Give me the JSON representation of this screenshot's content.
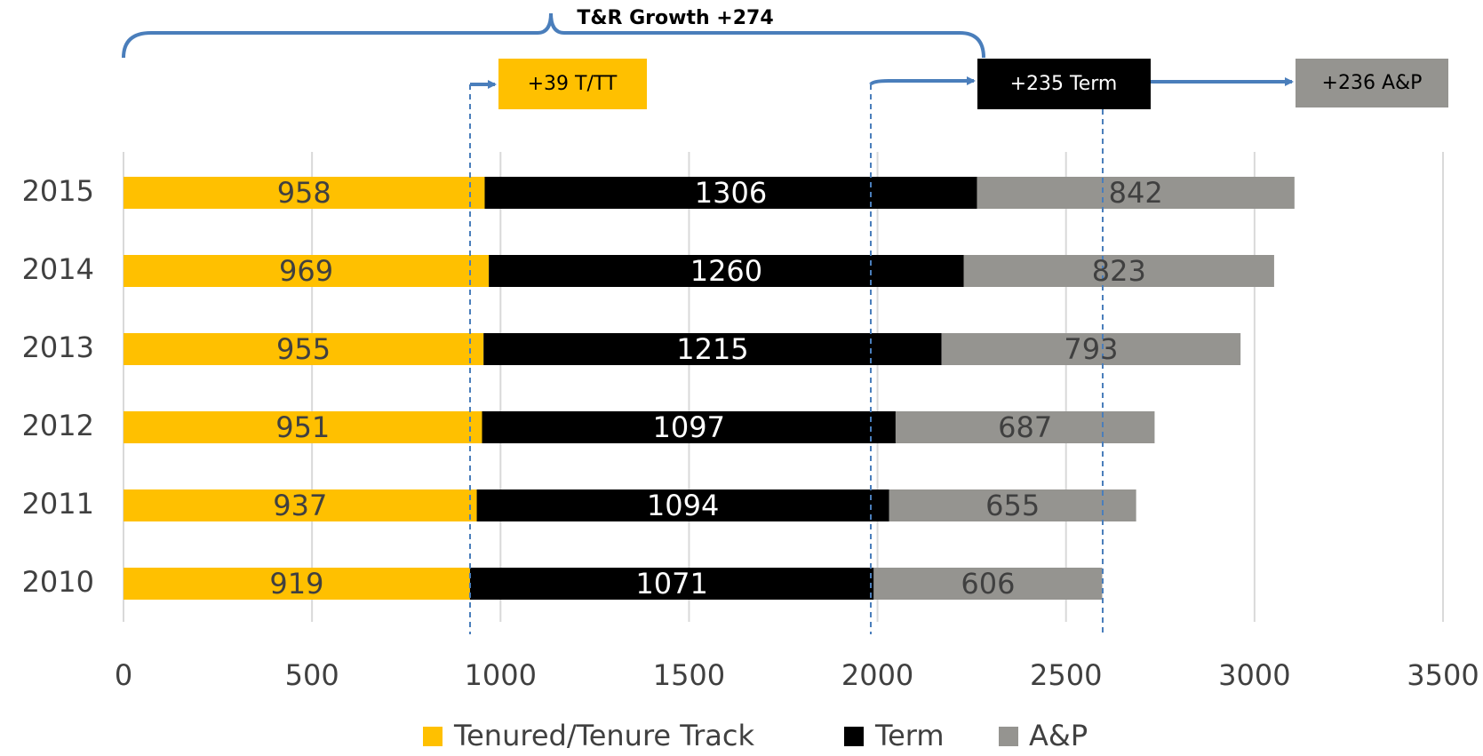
{
  "chart_data": {
    "type": "bar",
    "orientation": "horizontal",
    "stacked": true,
    "title": "T&R Growth +274",
    "annotations": [
      "+39 T/TT",
      "+235 Term",
      "+236 A&P"
    ],
    "categories": [
      "2010",
      "2011",
      "2012",
      "2013",
      "2014",
      "2015"
    ],
    "series": [
      {
        "name": "Tenured/Tenure Track",
        "color": "#FFC000",
        "values": [
          919,
          937,
          951,
          955,
          969,
          958
        ]
      },
      {
        "name": "Term",
        "color": "#000000",
        "values": [
          1071,
          1094,
          1097,
          1215,
          1260,
          1306
        ]
      },
      {
        "name": "A&P",
        "color": "#959490",
        "values": [
          606,
          655,
          687,
          793,
          823,
          842
        ]
      }
    ],
    "xlim": [
      0,
      3500
    ],
    "xticks": [
      0,
      500,
      1000,
      1500,
      2000,
      2500,
      3000,
      3500
    ],
    "grid": true,
    "legend": "bottom"
  }
}
